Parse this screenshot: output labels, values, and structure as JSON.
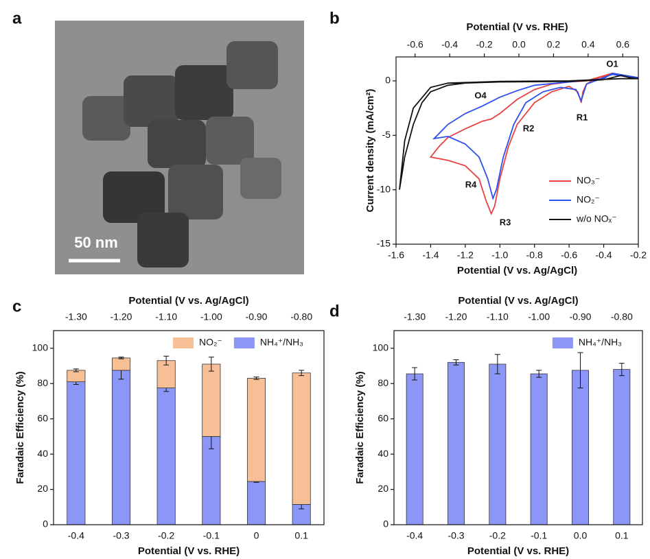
{
  "panel_labels": [
    "a",
    "b",
    "c",
    "d"
  ],
  "image": {
    "scale_bar": "50 nm"
  },
  "chart_data": [
    {
      "type": "line",
      "xlabel": "Potential (V vs. Ag/AgCl)",
      "x2label": "Potential (V vs. RHE)",
      "ylabel": "Current density (mA/cm²)",
      "xlim": [
        -1.6,
        -0.2
      ],
      "xticks": [
        -1.6,
        -1.4,
        -1.2,
        {
          "value": -1,
          "label": "-1.0"
        },
        -0.8,
        -0.6,
        -0.4,
        -0.2
      ],
      "x2lim": [
        -0.71,
        0.69
      ],
      "x2ticks": [
        -0.6,
        -0.4,
        -0.2,
        {
          "value": 0,
          "label": "0.0"
        },
        0.2,
        0.4,
        0.6
      ],
      "ylim": [
        -15,
        2.2
      ],
      "yticks": [
        -15,
        -10,
        -5,
        0
      ],
      "legend": "lower right",
      "annotations": [
        "O1",
        "O4",
        "R1",
        "R2",
        "R3",
        "R4"
      ],
      "series": [
        {
          "name": "NO₃⁻",
          "color": "#e8413f",
          "x": [
            -0.2,
            -0.35,
            -0.45,
            -0.5,
            -0.52,
            -0.53,
            -0.55,
            -0.6,
            -0.7,
            -0.8,
            -0.9,
            -0.95,
            -1.0,
            -1.03,
            -1.05,
            -1.08,
            -1.12,
            -1.2,
            -1.3,
            -1.4,
            -1.35,
            -1.3,
            -1.2,
            -1.1,
            -1.05,
            -1.0,
            -0.9,
            -0.8,
            -0.7,
            -0.6,
            -0.5,
            -0.35,
            -0.2
          ],
          "values": [
            0.2,
            0.6,
            0.2,
            -0.3,
            -1,
            -2,
            -1,
            -0.5,
            -1,
            -2,
            -4,
            -6,
            -9,
            -11.5,
            -12.2,
            -11,
            -9,
            -7.8,
            -7.3,
            -7,
            -6,
            -5.2,
            -4.4,
            -3.7,
            -3.5,
            -3,
            -1.7,
            -0.8,
            -0.3,
            -0.1,
            0,
            0.7,
            0.3
          ]
        },
        {
          "name": "NO₂⁻",
          "color": "#2b4ff0",
          "x": [
            -0.2,
            -0.35,
            -0.5,
            -0.53,
            -0.56,
            -0.65,
            -0.75,
            -0.85,
            -0.92,
            -0.98,
            -1.02,
            -1.04,
            -1.07,
            -1.12,
            -1.2,
            -1.3,
            -1.38,
            -1.3,
            -1.2,
            -1.1,
            -1.0,
            -0.9,
            -0.8,
            -0.6,
            -0.4,
            -0.35,
            -0.2
          ],
          "values": [
            0.2,
            0.6,
            -0.3,
            -1.8,
            -0.8,
            -0.6,
            -1,
            -2,
            -4,
            -7,
            -10,
            -10.8,
            -9,
            -7,
            -5.8,
            -5.1,
            -5.3,
            -4,
            -3,
            -2.3,
            -1.5,
            -0.9,
            -0.4,
            -0.1,
            0.2,
            0.7,
            0.3
          ]
        },
        {
          "name": "w/o NOₓ⁻",
          "color": "#111111",
          "x": [
            -1.58,
            -1.55,
            -1.5,
            -1.45,
            -1.4,
            -1.3,
            -1.2,
            -1.0,
            -0.6,
            -0.4,
            -0.3,
            -0.25,
            -0.2,
            -0.3,
            -0.6,
            -1.0,
            -1.3,
            -1.4,
            -1.5,
            -1.55,
            -1.58
          ],
          "values": [
            -10,
            -7,
            -4,
            -2,
            -1,
            -0.4,
            -0.2,
            -0.1,
            -0.05,
            0.1,
            0.5,
            0.3,
            0.2,
            0.2,
            0,
            -0.05,
            -0.2,
            -0.6,
            -2.5,
            -5.5,
            -10
          ]
        }
      ]
    },
    {
      "type": "stacked_bar",
      "xlabel": "Potential (V vs. RHE)",
      "x2label": "Potential (V vs. Ag/AgCl)",
      "ylabel": "Faradaic Efficiency (%)",
      "categories": [
        "-0.4",
        "-0.3",
        "-0.2",
        "-0.1",
        "0",
        "0.1"
      ],
      "x2_categories": [
        "-1.30",
        "-1.20",
        "-1.10",
        "-1.00",
        "-0.90",
        "-0.80"
      ],
      "ylim": [
        0,
        110
      ],
      "yticks": [
        0,
        20,
        40,
        60,
        80,
        100
      ],
      "legend": "upper right",
      "series": [
        {
          "name": "NH₄⁺/NH₃",
          "color": "#8c96f7",
          "values": [
            81,
            87.5,
            77.5,
            50,
            24.5,
            11.5
          ],
          "errors": [
            1.5,
            5,
            2,
            7,
            0.5,
            2.5
          ]
        },
        {
          "name": "NO₂⁻",
          "color": "#f6bf95",
          "values": [
            6.5,
            7,
            15.5,
            41,
            58.5,
            74.5
          ],
          "errors": [
            0.8,
            0.5,
            2.5,
            4,
            0.7,
            1.5
          ]
        }
      ]
    },
    {
      "type": "bar",
      "xlabel": "Potential (V vs. RHE)",
      "x2label": "Potential (V vs. Ag/AgCl)",
      "ylabel": "Faradaic Efficiency (%)",
      "categories": [
        "-0.4",
        "-0.3",
        "-0.2",
        "-0.1",
        "0.0",
        "0.1"
      ],
      "x2_categories": [
        "-1.30",
        "-1.20",
        "-1.10",
        "-1.00",
        "-0.90",
        "-0.80"
      ],
      "ylim": [
        0,
        110
      ],
      "yticks": [
        0,
        20,
        40,
        60,
        80,
        100
      ],
      "legend": "upper right",
      "series": [
        {
          "name": "NH₄⁺/NH₃",
          "color": "#8c96f7",
          "values": [
            85.5,
            92,
            91,
            85.5,
            87.5,
            88
          ],
          "errors": [
            3.5,
            1.5,
            5.5,
            2,
            10,
            3.5
          ]
        }
      ]
    }
  ]
}
